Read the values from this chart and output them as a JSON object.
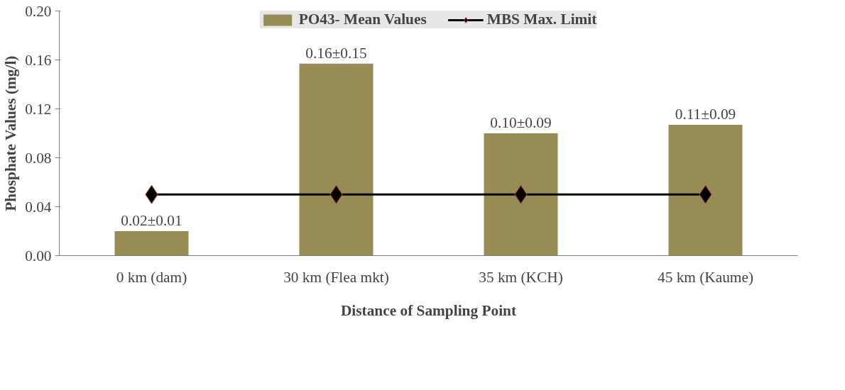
{
  "chart_data": {
    "type": "bar",
    "xlabel": "Distance of Sampling Point",
    "ylabel": "Phosphate Values (mg/l)",
    "categories": [
      "0 km (dam)",
      "30 km (Flea mkt)",
      "35 km (KCH)",
      "45 km (Kaume)"
    ],
    "series": [
      {
        "name": "PO43- Mean Values",
        "color": "#978c53",
        "values": [
          0.02,
          0.157,
          0.1,
          0.107
        ],
        "value_labels": [
          "0.02±0.01",
          "0.16±0.15",
          "0.10±0.09",
          "0.11±0.09"
        ]
      },
      {
        "name": "MBS Max. Limit",
        "type": "line",
        "color": "#000000",
        "values": [
          0.05,
          0.05,
          0.05,
          0.05
        ],
        "marker": "diamond"
      }
    ],
    "ylim": [
      0,
      0.2
    ],
    "yticks": [
      {
        "value": 0,
        "label": "0.00"
      },
      0.04,
      0.08,
      0.12,
      0.16,
      {
        "value": 0.2,
        "label": "0.20"
      }
    ],
    "grid": false,
    "legend": "top"
  }
}
